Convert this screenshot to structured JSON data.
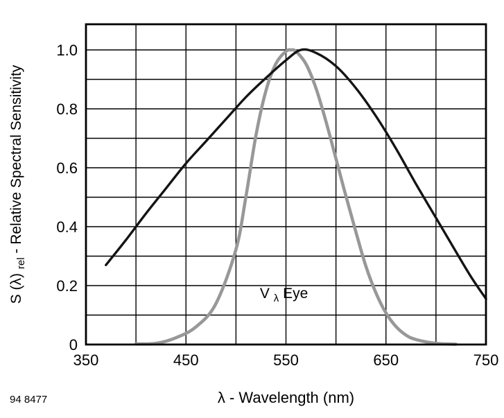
{
  "chart_data": {
    "type": "line",
    "title": "",
    "xlabel": "λ - Wavelength (nm)",
    "ylabel": "S (λ)rel - Relative Spectral Sensitivity",
    "ylabel_parts": {
      "pre": "S (λ)",
      "sub": "rel",
      "post": " - Relative Spectral Sensitivity"
    },
    "xlim": [
      350,
      750
    ],
    "ylim": [
      0,
      1.087
    ],
    "x_ticks": [
      350,
      450,
      550,
      650,
      750
    ],
    "x_tick_labels": [
      "350",
      "450",
      "550",
      "650",
      "750"
    ],
    "y_ticks": [
      0,
      0.2,
      0.4,
      0.6,
      0.8,
      1.0
    ],
    "y_tick_labels": [
      "0",
      "0.2",
      "0.4",
      "0.6",
      "0.8",
      "1.0"
    ],
    "x_grid_step": 50,
    "y_grid_step": 0.1,
    "grid": true,
    "legend": "none",
    "colors": {
      "detector_curve": "#141414",
      "eye_curve": "#989898",
      "grid": "#000000"
    },
    "series": [
      {
        "name": "detector-spectral-sensitivity",
        "color": "#141414",
        "stroke_width": 3.4,
        "x": [
          370,
          390,
          410,
          430,
          450,
          470,
          490,
          510,
          530,
          550,
          565,
          580,
          600,
          620,
          640,
          660,
          680,
          700,
          720,
          735,
          750
        ],
        "y": [
          0.27,
          0.355,
          0.445,
          0.53,
          0.615,
          0.69,
          0.765,
          0.84,
          0.905,
          0.965,
          1.0,
          0.99,
          0.945,
          0.87,
          0.775,
          0.665,
          0.545,
          0.43,
          0.315,
          0.23,
          0.155
        ]
      },
      {
        "name": "v-lambda-eye-response",
        "color": "#989898",
        "stroke_width": 4.6,
        "x": [
          400,
          420,
          440,
          460,
          480,
          500,
          510,
          520,
          530,
          540,
          550,
          555,
          560,
          570,
          580,
          590,
          600,
          610,
          620,
          630,
          640,
          650,
          660,
          670,
          680,
          700,
          720
        ],
        "y": [
          0.002,
          0.004,
          0.023,
          0.06,
          0.139,
          0.323,
          0.503,
          0.71,
          0.862,
          0.954,
          0.995,
          1.0,
          0.995,
          0.952,
          0.87,
          0.757,
          0.631,
          0.503,
          0.381,
          0.265,
          0.175,
          0.107,
          0.061,
          0.032,
          0.017,
          0.004,
          0.001
        ]
      }
    ],
    "annotation": {
      "pre": "V",
      "sub": "λ",
      "post": " Eye",
      "x_nm": 548,
      "y_value": 0.158
    }
  },
  "footer": {
    "note": "94 8477"
  }
}
